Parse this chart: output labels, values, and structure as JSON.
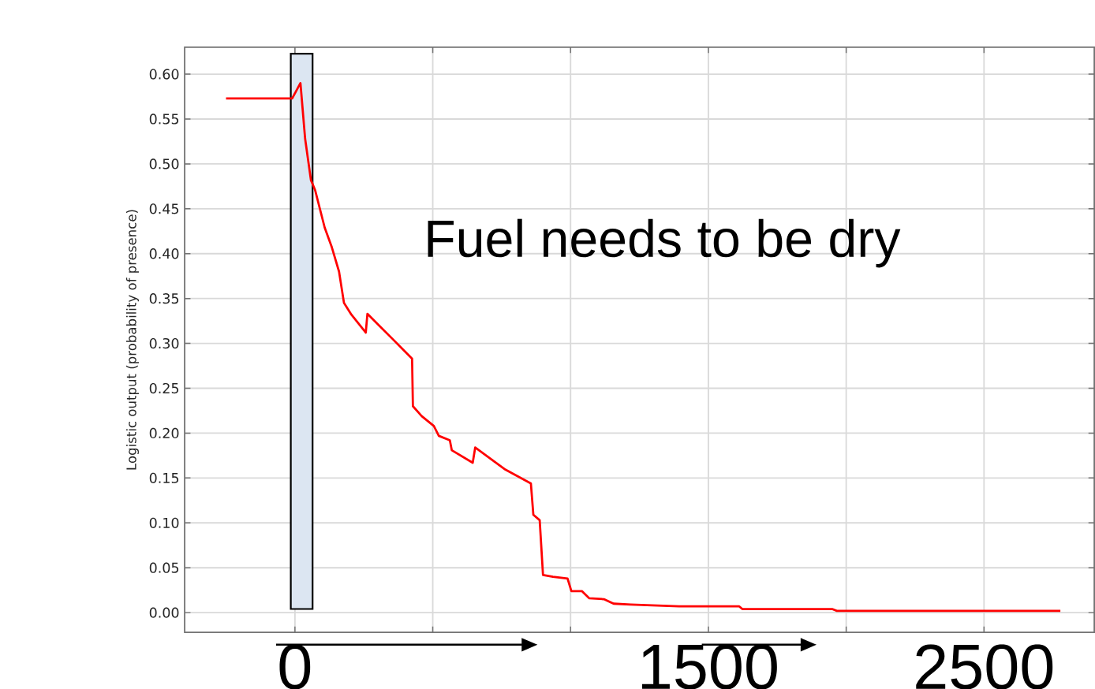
{
  "chart_data": {
    "type": "line",
    "ylabel": "Logistic output (probability of presence)",
    "annotations": [
      "Fuel needs to be dry"
    ],
    "x": [
      -250,
      -10,
      20,
      37,
      58,
      73,
      108,
      134,
      160,
      178,
      205,
      257,
      263,
      302,
      354,
      425,
      428,
      460,
      504,
      522,
      562,
      569,
      645,
      654,
      760,
      856,
      865,
      888,
      900,
      936,
      989,
      1003,
      1041,
      1068,
      1121,
      1156,
      1218,
      1394,
      1612,
      1623,
      1949,
      1966,
      2777
    ],
    "values": [
      0.573,
      0.573,
      0.59,
      0.528,
      0.482,
      0.471,
      0.429,
      0.407,
      0.38,
      0.345,
      0.332,
      0.312,
      0.333,
      0.321,
      0.305,
      0.283,
      0.23,
      0.219,
      0.208,
      0.197,
      0.192,
      0.181,
      0.167,
      0.184,
      0.16,
      0.144,
      0.109,
      0.103,
      0.042,
      0.04,
      0.038,
      0.024,
      0.024,
      0.016,
      0.015,
      0.01,
      0.009,
      0.007,
      0.007,
      0.004,
      0.004,
      0.002,
      0.002
    ],
    "color": "#ff0000",
    "xlim": [
      -400,
      2900
    ],
    "ylim": [
      -0.022,
      0.63
    ],
    "xticks": [
      0,
      {
        "value": 500,
        "label": null
      },
      {
        "value": 1000,
        "label": null
      },
      1500,
      {
        "value": 2000,
        "label": null
      },
      2500
    ],
    "yticks": [
      {
        "value": 0,
        "label": "0.00"
      },
      {
        "value": 0.05,
        "label": "0.05"
      },
      {
        "value": 0.1,
        "label": "0.10"
      },
      {
        "value": 0.15,
        "label": "0.15"
      },
      {
        "value": 0.2,
        "label": "0.20"
      },
      {
        "value": 0.25,
        "label": "0.25"
      },
      {
        "value": 0.3,
        "label": "0.30"
      },
      {
        "value": 0.35,
        "label": "0.35"
      },
      {
        "value": 0.4,
        "label": "0.40"
      },
      {
        "value": 0.45,
        "label": "0.45"
      },
      {
        "value": 0.5,
        "label": "0.50"
      },
      {
        "value": 0.55,
        "label": "0.55"
      },
      {
        "value": 0.6,
        "label": "0.60"
      }
    ],
    "grid": true,
    "bands": [
      {
        "axis": "x",
        "from": -15,
        "to": 64,
        "color": "#dce6f2"
      }
    ]
  }
}
